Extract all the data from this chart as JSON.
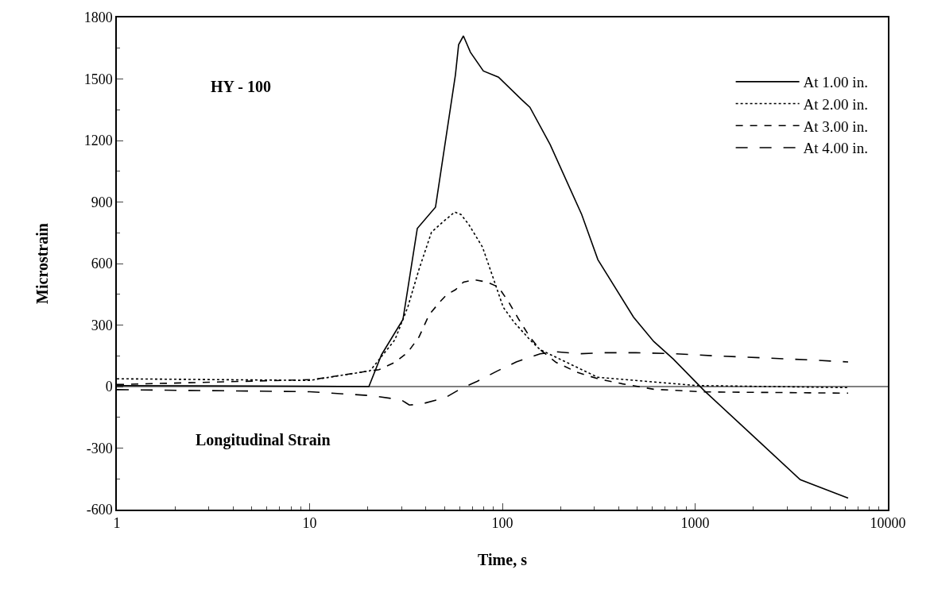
{
  "chart_data": {
    "type": "line",
    "xlabel": "Time, s",
    "ylabel": "Microstrain",
    "log": "x",
    "xlim": [
      1,
      10000
    ],
    "xticks": [
      1,
      10,
      100,
      1000,
      10000
    ],
    "ylim": [
      -600,
      1800
    ],
    "yticks": [
      -600,
      -300,
      0,
      300,
      600,
      900,
      1200,
      1500,
      1800
    ],
    "legend": "top right",
    "marker": "none",
    "annotations": [
      "HY - 100",
      "Longitudinal Strain"
    ],
    "ref_lines": [
      {
        "axis": "y",
        "value": 0,
        "color": "#000000",
        "line_style": "solid"
      }
    ],
    "series": [
      {
        "name": "At 1.00 in.",
        "color": "#000000",
        "line_style": "solid",
        "x": [
          1,
          10,
          20.3,
          23.6,
          30.5,
          36.2,
          45,
          57.1,
          59.3,
          62.8,
          68.3,
          79.7,
          95.5,
          126,
          139,
          177,
          258,
          313,
          479,
          610,
          771,
          1112,
          2049,
          3510,
          6220
        ],
        "values": [
          5,
          2,
          0,
          155,
          327,
          771,
          875,
          1521,
          1667,
          1710,
          1630,
          1539,
          1509,
          1399,
          1362,
          1180,
          839,
          619,
          339,
          220,
          134,
          -19,
          -250,
          -454,
          -544
        ]
      },
      {
        "name": "At 2.00 in.",
        "color": "#000000",
        "line_style": "dotted",
        "x": [
          1,
          10,
          20.6,
          27.7,
          32.3,
          36.9,
          42.9,
          49,
          56.6,
          61,
          67,
          78.9,
          89.3,
          101,
          115,
          139,
          157,
          313,
          1013,
          6220
        ],
        "values": [
          38,
          30,
          77,
          228,
          387,
          570,
          753,
          802,
          851,
          839,
          790,
          680,
          534,
          387,
          314,
          228,
          180,
          45,
          5,
          -5
        ]
      },
      {
        "name": "At 3.00 in.",
        "color": "#000000",
        "line_style": "dashed",
        "x": [
          1,
          10.4,
          20.6,
          22.9,
          27.7,
          32.3,
          36.9,
          41.7,
          47.2,
          51.4,
          57.1,
          62.8,
          71.3,
          83.8,
          95.5,
          108,
          122,
          139,
          157,
          190,
          244,
          313,
          421,
          610,
          1112,
          6220
        ],
        "values": [
          10,
          34,
          77,
          82,
          118,
          167,
          241,
          350,
          411,
          448,
          472,
          509,
          521,
          509,
          485,
          411,
          326,
          241,
          180,
          118,
          70,
          38,
          13,
          -13,
          -26,
          -32
        ]
      },
      {
        "name": "At 4.00 in.",
        "color": "#000000",
        "line_style": "dashed",
        "x": [
          1,
          10,
          21.4,
          29.9,
          32.9,
          38,
          50.4,
          61,
          73.9,
          93.7,
          118,
          157,
          190,
          251,
          335,
          493,
          793,
          1260,
          2249,
          3961,
          6220
        ],
        "values": [
          -15,
          -25,
          -45,
          -65,
          -90,
          -85,
          -55,
          -10,
          25,
          75,
          120,
          160,
          170,
          160,
          165,
          165,
          160,
          150,
          140,
          130,
          120
        ]
      }
    ]
  }
}
